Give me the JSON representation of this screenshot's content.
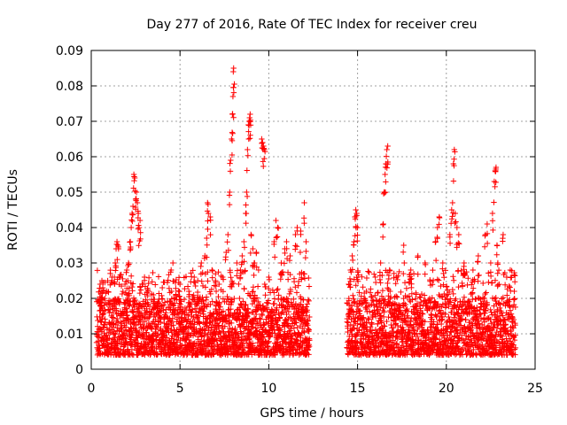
{
  "chart_data": {
    "type": "scatter",
    "title": "Day 277 of 2016, Rate Of TEC Index for receiver creu",
    "xlabel": "GPS time / hours",
    "ylabel": "ROTI / TECUs",
    "xlim": [
      0,
      25
    ],
    "ylim": [
      0,
      0.09
    ],
    "grid": true,
    "x_ticks": [
      {
        "value": 0,
        "label": "0"
      },
      {
        "value": 5,
        "label": "5"
      },
      {
        "value": 10,
        "label": "10"
      },
      {
        "value": 15,
        "label": "15"
      },
      {
        "value": 20,
        "label": "20"
      },
      {
        "value": 25,
        "label": "25"
      }
    ],
    "y_ticks": [
      {
        "value": 0,
        "label": "0"
      },
      {
        "value": 0.01,
        "label": "0.01"
      },
      {
        "value": 0.02,
        "label": "0.02"
      },
      {
        "value": 0.03,
        "label": "0.03"
      },
      {
        "value": 0.04,
        "label": "0.04"
      },
      {
        "value": 0.05,
        "label": "0.05"
      },
      {
        "value": 0.06,
        "label": "0.06"
      },
      {
        "value": 0.07,
        "label": "0.07"
      },
      {
        "value": 0.08,
        "label": "0.08"
      },
      {
        "value": 0.09,
        "label": "0.09"
      }
    ],
    "marker_color": "#ff0000",
    "marker": "+",
    "series": [
      {
        "name": "ROTI",
        "coverage_hours": [
          [
            0.3,
            12.3
          ],
          [
            14.4,
            23.9
          ]
        ],
        "baseline_range": [
          0.004,
          0.02
        ],
        "points": [
          [
            0.5,
            0.024
          ],
          [
            0.55,
            0.022
          ],
          [
            0.6,
            0.025
          ],
          [
            0.65,
            0.023
          ],
          [
            1.3,
            0.026
          ],
          [
            1.35,
            0.03
          ],
          [
            1.4,
            0.034
          ],
          [
            1.45,
            0.036
          ],
          [
            1.5,
            0.035
          ],
          [
            1.9,
            0.024
          ],
          [
            2.0,
            0.028
          ],
          [
            2.1,
            0.03
          ],
          [
            2.2,
            0.036
          ],
          [
            2.25,
            0.04
          ],
          [
            2.3,
            0.044
          ],
          [
            2.35,
            0.046
          ],
          [
            2.4,
            0.055
          ],
          [
            2.45,
            0.054
          ],
          [
            2.5,
            0.048
          ],
          [
            2.55,
            0.05
          ],
          [
            2.6,
            0.047
          ],
          [
            2.65,
            0.044
          ],
          [
            2.7,
            0.04
          ],
          [
            2.75,
            0.042
          ],
          [
            3.0,
            0.026
          ],
          [
            3.2,
            0.022
          ],
          [
            3.5,
            0.021
          ],
          [
            4.0,
            0.023
          ],
          [
            4.5,
            0.028
          ],
          [
            4.6,
            0.03
          ],
          [
            5.0,
            0.024
          ],
          [
            5.5,
            0.022
          ],
          [
            5.8,
            0.026
          ],
          [
            6.0,
            0.025
          ],
          [
            6.2,
            0.03
          ],
          [
            6.4,
            0.032
          ],
          [
            6.5,
            0.037
          ],
          [
            6.55,
            0.047
          ],
          [
            6.6,
            0.044
          ],
          [
            6.7,
            0.043
          ],
          [
            6.8,
            0.028
          ],
          [
            7.0,
            0.025
          ],
          [
            7.2,
            0.024
          ],
          [
            7.4,
            0.026
          ],
          [
            7.6,
            0.033
          ],
          [
            7.7,
            0.038
          ],
          [
            7.8,
            0.05
          ],
          [
            7.85,
            0.059
          ],
          [
            7.9,
            0.065
          ],
          [
            7.95,
            0.072
          ],
          [
            7.98,
            0.077
          ],
          [
            8.0,
            0.084
          ],
          [
            8.02,
            0.085
          ],
          [
            8.2,
            0.03
          ],
          [
            8.4,
            0.028
          ],
          [
            8.5,
            0.032
          ],
          [
            8.6,
            0.036
          ],
          [
            8.7,
            0.044
          ],
          [
            8.75,
            0.05
          ],
          [
            8.8,
            0.062
          ],
          [
            8.85,
            0.069
          ],
          [
            8.9,
            0.07
          ],
          [
            8.92,
            0.071
          ],
          [
            8.95,
            0.072
          ],
          [
            9.0,
            0.038
          ],
          [
            9.1,
            0.034
          ],
          [
            9.2,
            0.03
          ],
          [
            9.3,
            0.033
          ],
          [
            9.6,
            0.065
          ],
          [
            9.65,
            0.064
          ],
          [
            9.7,
            0.063
          ],
          [
            9.75,
            0.062
          ],
          [
            10.0,
            0.026
          ],
          [
            10.3,
            0.036
          ],
          [
            10.4,
            0.042
          ],
          [
            10.5,
            0.04
          ],
          [
            10.7,
            0.03
          ],
          [
            10.9,
            0.034
          ],
          [
            11.0,
            0.036
          ],
          [
            11.2,
            0.032
          ],
          [
            11.5,
            0.038
          ],
          [
            11.6,
            0.04
          ],
          [
            11.8,
            0.039
          ],
          [
            12.0,
            0.047
          ],
          [
            12.1,
            0.036
          ],
          [
            14.5,
            0.024
          ],
          [
            14.6,
            0.028
          ],
          [
            14.7,
            0.032
          ],
          [
            14.8,
            0.036
          ],
          [
            14.85,
            0.043
          ],
          [
            14.9,
            0.045
          ],
          [
            14.95,
            0.044
          ],
          [
            15.0,
            0.04
          ],
          [
            15.5,
            0.022
          ],
          [
            16.0,
            0.026
          ],
          [
            16.3,
            0.03
          ],
          [
            16.45,
            0.041
          ],
          [
            16.5,
            0.05
          ],
          [
            16.55,
            0.055
          ],
          [
            16.6,
            0.058
          ],
          [
            16.65,
            0.062
          ],
          [
            16.7,
            0.063
          ],
          [
            16.8,
            0.028
          ],
          [
            17.2,
            0.026
          ],
          [
            17.6,
            0.035
          ],
          [
            18.0,
            0.028
          ],
          [
            18.4,
            0.032
          ],
          [
            18.8,
            0.03
          ],
          [
            19.4,
            0.036
          ],
          [
            19.5,
            0.04
          ],
          [
            19.6,
            0.043
          ],
          [
            19.8,
            0.03
          ],
          [
            20.2,
            0.038
          ],
          [
            20.3,
            0.045
          ],
          [
            20.35,
            0.047
          ],
          [
            20.4,
            0.058
          ],
          [
            20.45,
            0.062
          ],
          [
            20.5,
            0.044
          ],
          [
            20.6,
            0.04
          ],
          [
            20.7,
            0.038
          ],
          [
            21.0,
            0.03
          ],
          [
            21.5,
            0.028
          ],
          [
            21.8,
            0.032
          ],
          [
            22.2,
            0.038
          ],
          [
            22.3,
            0.041
          ],
          [
            22.5,
            0.03
          ],
          [
            22.6,
            0.044
          ],
          [
            22.7,
            0.053
          ],
          [
            22.75,
            0.056
          ],
          [
            22.8,
            0.057
          ],
          [
            22.85,
            0.035
          ],
          [
            22.9,
            0.03
          ],
          [
            23.2,
            0.038
          ],
          [
            23.4,
            0.026
          ],
          [
            23.6,
            0.028
          ]
        ]
      }
    ]
  }
}
